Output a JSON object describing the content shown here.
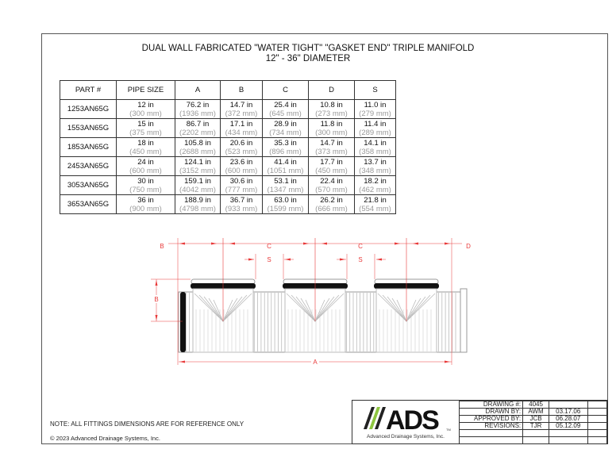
{
  "title": {
    "line1": "DUAL WALL FABRICATED \"WATER TIGHT\" \"GASKET END\" TRIPLE MANIFOLD",
    "line2": "12\" - 36\" DIAMETER"
  },
  "table": {
    "headers": [
      "PART #",
      "PIPE SIZE",
      "A",
      "B",
      "C",
      "D",
      "S"
    ],
    "rows": [
      {
        "part": "1253AN65G",
        "cells": [
          [
            "12 in",
            "(300 mm)"
          ],
          [
            "76.2 in",
            "(1936 mm)"
          ],
          [
            "14.7 in",
            "(372 mm)"
          ],
          [
            "25.4 in",
            "(645 mm)"
          ],
          [
            "10.8 in",
            "(273 mm)"
          ],
          [
            "11.0 in",
            "(279 mm)"
          ]
        ]
      },
      {
        "part": "1553AN65G",
        "cells": [
          [
            "15 in",
            "(375 mm)"
          ],
          [
            "86.7 in",
            "(2202 mm)"
          ],
          [
            "17.1 in",
            "(434 mm)"
          ],
          [
            "28.9 in",
            "(734 mm)"
          ],
          [
            "11.8 in",
            "(300 mm)"
          ],
          [
            "11.4 in",
            "(289 mm)"
          ]
        ]
      },
      {
        "part": "1853AN65G",
        "cells": [
          [
            "18 in",
            "(450 mm)"
          ],
          [
            "105.8 in",
            "(2688 mm)"
          ],
          [
            "20.6 in",
            "(523 mm)"
          ],
          [
            "35.3 in",
            "(896 mm)"
          ],
          [
            "14.7 in",
            "(373 mm)"
          ],
          [
            "14.1 in",
            "(358 mm)"
          ]
        ]
      },
      {
        "part": "2453AN65G",
        "cells": [
          [
            "24 in",
            "(600 mm)"
          ],
          [
            "124.1 in",
            "(3152 mm)"
          ],
          [
            "23.6 in",
            "(600 mm)"
          ],
          [
            "41.4 in",
            "(1051 mm)"
          ],
          [
            "17.7 in",
            "(450 mm)"
          ],
          [
            "13.7 in",
            "(348 mm)"
          ]
        ]
      },
      {
        "part": "3053AN65G",
        "cells": [
          [
            "30 in",
            "(750 mm)"
          ],
          [
            "159.1 in",
            "(4042 mm)"
          ],
          [
            "30.6 in",
            "(777 mm)"
          ],
          [
            "53.1 in",
            "(1347 mm)"
          ],
          [
            "22.4 in",
            "(570 mm)"
          ],
          [
            "18.2 in",
            "(462 mm)"
          ]
        ]
      },
      {
        "part": "3653AN65G",
        "cells": [
          [
            "36 in",
            "(900 mm)"
          ],
          [
            "188.9 in",
            "(4798 mm)"
          ],
          [
            "36.7 in",
            "(933 mm)"
          ],
          [
            "63.0 in",
            "(1599 mm)"
          ],
          [
            "26.2 in",
            "(666 mm)"
          ],
          [
            "21.8 in",
            "(554 mm)"
          ]
        ]
      }
    ]
  },
  "drawing": {
    "labels": {
      "b_top": "B",
      "c1": "C",
      "c2": "C",
      "d": "D",
      "s1": "S",
      "s2": "S",
      "b_side": "B",
      "a": "A"
    },
    "dim_color": "#e83a3a"
  },
  "note": "NOTE: ALL FITTINGS DIMENSIONS ARE FOR REFERENCE ONLY",
  "copyright": "© 2023 Advanced Drainage Systems, Inc.",
  "title_block": {
    "logo_text": "ADS",
    "logo_caption": "Advanced Drainage Systems, Inc.",
    "logo_tm": "TM",
    "logo_green": "#8dc63f",
    "rows": [
      {
        "label": "DRAWING #:",
        "by": "4045",
        "date": ""
      },
      {
        "label": "DRAWN BY:",
        "by": "AWM",
        "date": "03.17.06"
      },
      {
        "label": "APPROVED BY:",
        "by": "JCB",
        "date": "06.28.07"
      },
      {
        "label": "REVISIONS:",
        "by": "TJR",
        "date": "05.12.09"
      },
      {
        "label": "",
        "by": "",
        "date": ""
      },
      {
        "label": "",
        "by": "",
        "date": ""
      }
    ]
  }
}
